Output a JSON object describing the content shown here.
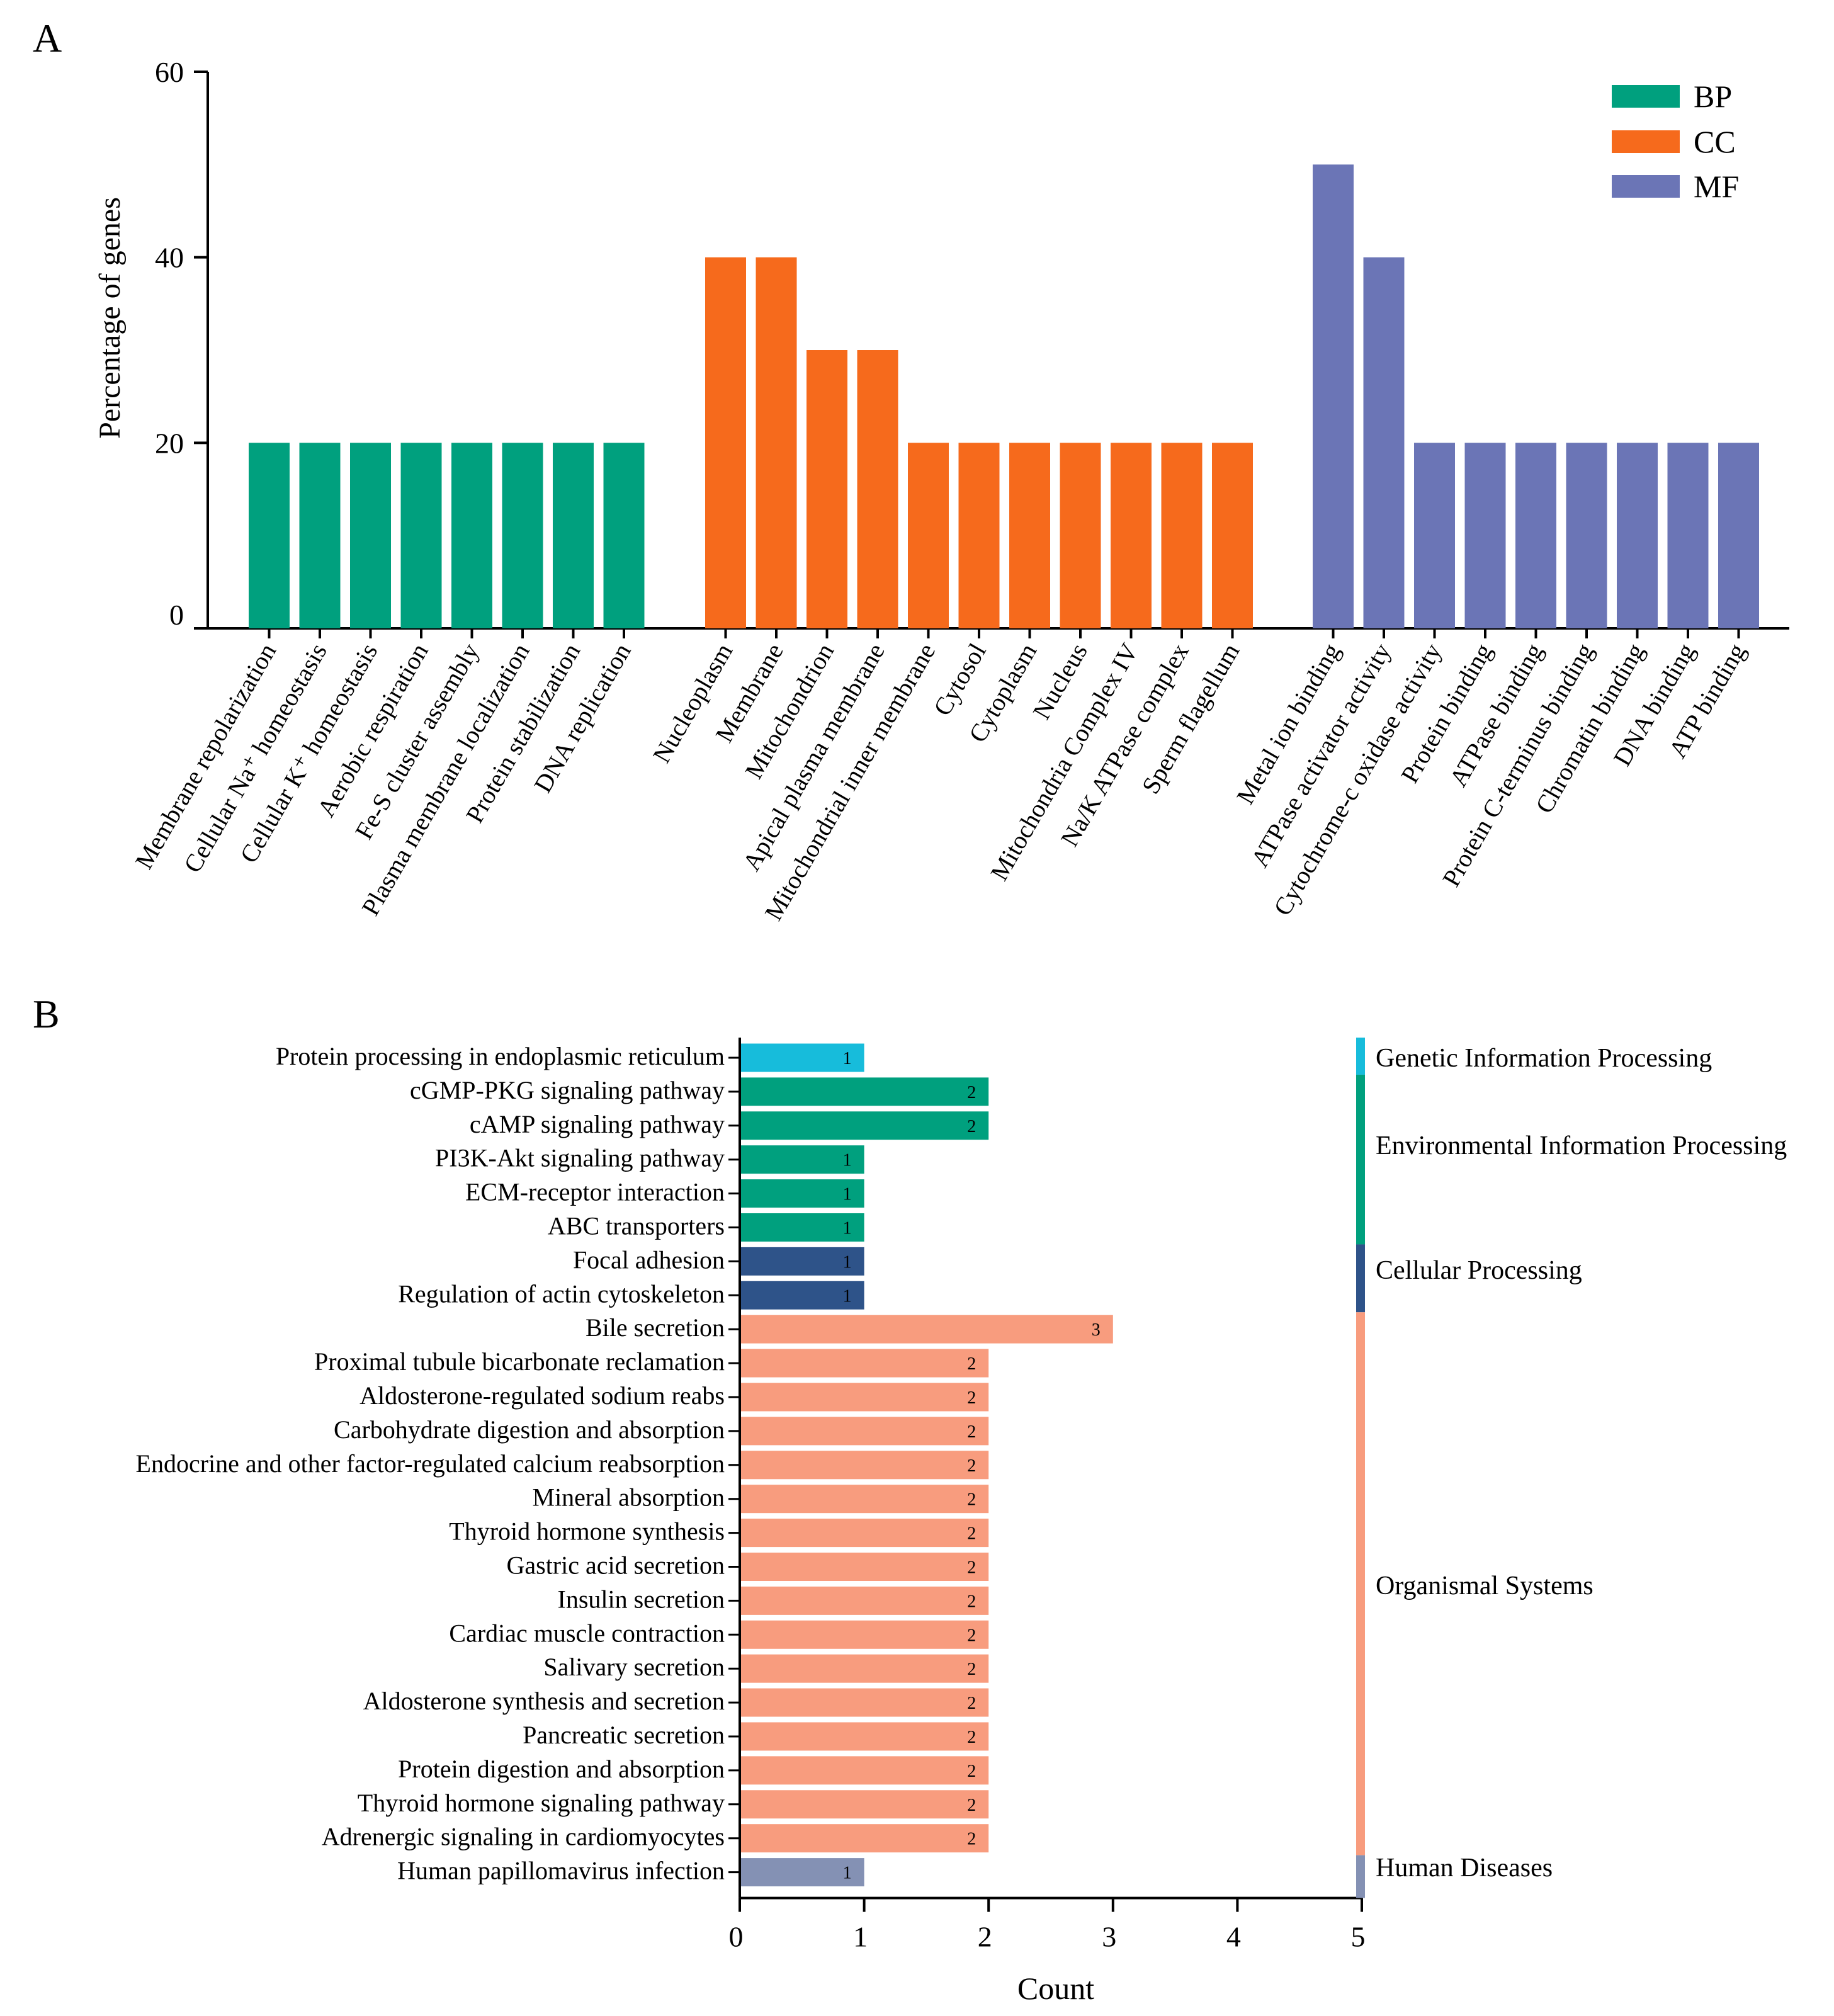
{
  "panel_labels": {
    "a": "A",
    "b": "B"
  },
  "chart_data": [
    {
      "type": "bar",
      "title": "",
      "xlabel": "",
      "ylabel": "Percentage of genes",
      "ylim": [
        0,
        60
      ],
      "yticks": [
        0,
        20,
        40,
        60
      ],
      "legend": {
        "placement": "top-right",
        "entries": [
          {
            "name": "BP",
            "color": "#00A07E"
          },
          {
            "name": "CC",
            "color": "#F66A1C"
          },
          {
            "name": "MF",
            "color": "#6B75B6"
          }
        ]
      },
      "groups": [
        {
          "name": "BP",
          "color": "#00A07E",
          "categories": [
            "Membrane repolarization",
            "Cellular Na⁺ homeostasis",
            "Cellular K⁺ homeostasis",
            "Aerobic respiration",
            "Fe-S cluster assembly",
            "Plasma membrane localization",
            "Protein stabilization",
            "DNA replication"
          ],
          "values": [
            20,
            20,
            20,
            20,
            20,
            20,
            20,
            20
          ]
        },
        {
          "name": "CC",
          "color": "#F66A1C",
          "categories": [
            "Nucleoplasm",
            "Membrane",
            "Mitochondrion",
            "Apical plasma membrane",
            "Mitochondrial inner membrane",
            "Cytosol",
            "Cytoplasm",
            "Nucleus",
            "Mitochondria Complex IV",
            "Na/K ATPase complex",
            "Sperm flagellum"
          ],
          "values": [
            40,
            40,
            30,
            30,
            20,
            20,
            20,
            20,
            20,
            20,
            20
          ]
        },
        {
          "name": "MF",
          "color": "#6B75B6",
          "categories": [
            "Metal ion binding",
            "ATPase activator activity",
            "Cytochrome-c oxidase activity",
            "Protein binding",
            "ATPase binding",
            "Protein C-terminus binding",
            "Chromatin binding",
            "DNA binding",
            "ATP binding"
          ],
          "values": [
            50,
            40,
            20,
            20,
            20,
            20,
            20,
            20,
            20
          ]
        }
      ]
    },
    {
      "type": "bar",
      "orientation": "horizontal",
      "title": "",
      "xlabel": "Count",
      "ylabel": "",
      "xlim": [
        0,
        5
      ],
      "xticks": [
        0,
        1,
        2,
        3,
        4,
        5
      ],
      "categories": [
        "Protein processing in endoplasmic reticulum",
        "cGMP-PKG signaling pathway",
        "cAMP signaling pathway",
        "PI3K-Akt signaling pathway",
        "ECM-receptor interaction",
        "ABC transporters",
        "Focal adhesion",
        "Regulation of actin cytoskeleton",
        "Bile secretion",
        "Proximal tubule bicarbonate reclamation",
        "Aldosterone-regulated sodium reabs",
        "Carbohydrate digestion and absorption",
        "Endocrine and other factor-regulated calcium reabsorption",
        "Mineral absorption",
        "Thyroid hormone synthesis",
        "Gastric acid secretion",
        "Insulin secretion",
        "Cardiac muscle contraction",
        "Salivary secretion",
        "Aldosterone synthesis and secretion",
        "Pancreatic secretion",
        "Protein digestion and absorption",
        "Thyroid hormone signaling pathway",
        "Adrenergic signaling in cardiomyocytes",
        "Human papillomavirus infection"
      ],
      "values": [
        1,
        2,
        2,
        1,
        1,
        1,
        1,
        1,
        3,
        2,
        2,
        2,
        2,
        2,
        2,
        2,
        2,
        2,
        2,
        2,
        2,
        2,
        2,
        2,
        1
      ],
      "data_labels": [
        "1",
        "2",
        "2",
        "1",
        "1",
        "1",
        "1",
        "1",
        "3",
        "2",
        "2",
        "2",
        "2",
        "2",
        "2",
        "2",
        "2",
        "2",
        "2",
        "2",
        "2",
        "2",
        "2",
        "2",
        "1"
      ],
      "classes": [
        {
          "name": "Genetic Information Processing",
          "color": "#17BCDB",
          "count": 1
        },
        {
          "name": "Environmental Information Processing",
          "color": "#00A07E",
          "count": 5
        },
        {
          "name": "Cellular Processing",
          "color": "#2E5389",
          "count": 2
        },
        {
          "name": "Organismal Systems",
          "color": "#F89C7E",
          "count": 16
        },
        {
          "name": "Human Diseases",
          "color": "#8491B4",
          "count": 1
        }
      ]
    }
  ]
}
